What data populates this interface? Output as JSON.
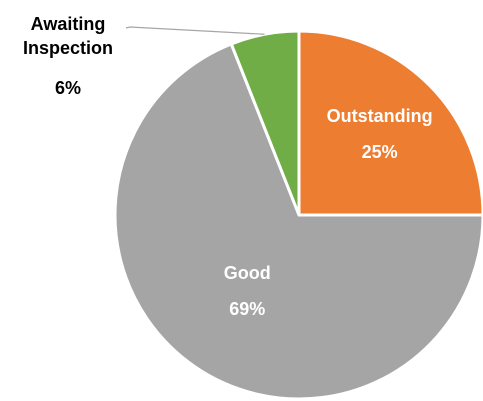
{
  "chart_data": {
    "type": "pie",
    "categories": [
      "Outstanding",
      "Good",
      "Awaiting Inspection"
    ],
    "values": [
      25,
      69,
      6
    ],
    "value_labels": [
      "25%",
      "69%",
      "6%"
    ],
    "colors": [
      "#ED7D31",
      "#A5A5A5",
      "#70AD47"
    ]
  }
}
